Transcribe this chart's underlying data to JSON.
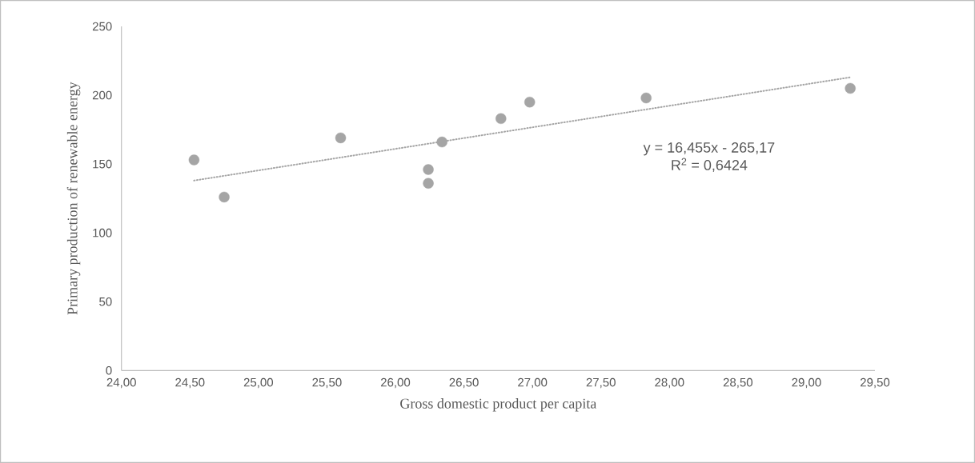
{
  "chart_data": {
    "type": "scatter",
    "xlabel": "Gross domestic product per capita",
    "ylabel": "Primary production of renewable energy",
    "series": [
      {
        "marker": "circle",
        "color": "#a5a5a5",
        "x": [
          24.53,
          24.75,
          25.6,
          26.24,
          26.24,
          26.34,
          26.77,
          26.98,
          27.83,
          29.32
        ],
        "values": [
          153,
          126,
          169,
          146,
          136,
          166,
          183,
          195,
          198,
          205
        ]
      },
      {
        "type": "line",
        "marker": "none",
        "color": "#a5a5a5",
        "line_style": "dotted",
        "x": [
          24.53,
          29.32
        ],
        "values": [
          138,
          213
        ]
      }
    ],
    "annotations": [
      "y = 16,455x - 265,17",
      "R$^{2}$ = 0,6424"
    ],
    "xlim": [
      24,
      29.5
    ],
    "ylim": [
      0,
      250
    ],
    "xticks": [
      {
        "value": 24,
        "label": "24,00"
      },
      {
        "value": 24.5,
        "label": "24,50"
      },
      {
        "value": 25,
        "label": "25,00"
      },
      {
        "value": 25.5,
        "label": "25,50"
      },
      {
        "value": 26,
        "label": "26,00"
      },
      {
        "value": 26.5,
        "label": "26,50"
      },
      {
        "value": 27,
        "label": "27,00"
      },
      {
        "value": 27.5,
        "label": "27,50"
      },
      {
        "value": 28,
        "label": "28,00"
      },
      {
        "value": 28.5,
        "label": "28,50"
      },
      {
        "value": 29,
        "label": "29,00"
      },
      {
        "value": 29.5,
        "label": "29,50"
      }
    ],
    "yticks": [
      0,
      50,
      100,
      150,
      200,
      250
    ]
  }
}
